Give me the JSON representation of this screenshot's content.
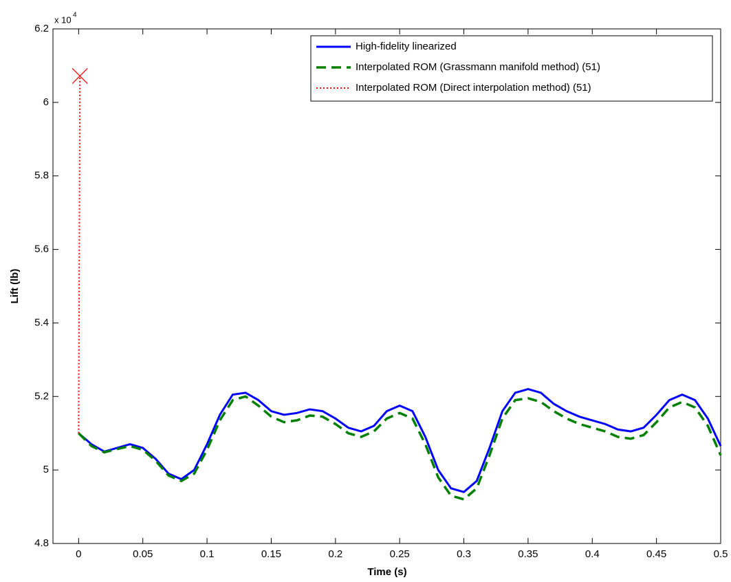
{
  "chart_data": {
    "type": "line",
    "x_label": "Time (s)",
    "y_label": "Lift (lb)",
    "y_scale": {
      "base": "x 10",
      "exponent": "4"
    },
    "xlim": [
      -0.02,
      0.5
    ],
    "ylim": [
      4.8,
      6.2
    ],
    "xticks": [
      0,
      0.05,
      0.1,
      0.15,
      0.2,
      0.25,
      0.3,
      0.35,
      0.4,
      0.45,
      0.5
    ],
    "yticks": [
      4.8,
      5,
      5.2,
      5.4,
      5.6,
      5.8,
      6,
      6.2
    ],
    "legend": "upper right",
    "grid": false,
    "x": [
      0,
      0.01,
      0.02,
      0.03,
      0.04,
      0.05,
      0.06,
      0.07,
      0.08,
      0.09,
      0.1,
      0.11,
      0.12,
      0.13,
      0.14,
      0.15,
      0.16,
      0.17,
      0.18,
      0.19,
      0.2,
      0.21,
      0.22,
      0.23,
      0.24,
      0.25,
      0.26,
      0.27,
      0.28,
      0.29,
      0.3,
      0.31,
      0.32,
      0.33,
      0.34,
      0.35,
      0.36,
      0.37,
      0.38,
      0.39,
      0.4,
      0.41,
      0.42,
      0.43,
      0.44,
      0.45,
      0.46,
      0.47,
      0.48,
      0.49,
      0.5
    ],
    "series": [
      {
        "name": "High-fidelity linearized",
        "color": "#0000ff",
        "style": "solid",
        "values": [
          5.1,
          5.07,
          5.05,
          5.06,
          5.07,
          5.06,
          5.03,
          4.99,
          4.975,
          5.0,
          5.07,
          5.15,
          5.205,
          5.21,
          5.19,
          5.16,
          5.15,
          5.155,
          5.165,
          5.16,
          5.14,
          5.115,
          5.105,
          5.12,
          5.16,
          5.175,
          5.16,
          5.09,
          5.0,
          4.95,
          4.94,
          4.97,
          5.06,
          5.16,
          5.21,
          5.22,
          5.21,
          5.18,
          5.16,
          5.145,
          5.135,
          5.125,
          5.11,
          5.105,
          5.115,
          5.15,
          5.19,
          5.205,
          5.19,
          5.14,
          5.065
        ]
      },
      {
        "name": "Interpolated ROM (Grassmann manifold method) (51)",
        "color": "#008000",
        "style": "dashed",
        "values": [
          5.1,
          5.065,
          5.048,
          5.057,
          5.065,
          5.055,
          5.025,
          4.985,
          4.97,
          4.99,
          5.055,
          5.135,
          5.19,
          5.2,
          5.175,
          5.145,
          5.13,
          5.135,
          5.148,
          5.145,
          5.125,
          5.1,
          5.09,
          5.105,
          5.14,
          5.155,
          5.14,
          5.07,
          4.98,
          4.93,
          4.92,
          4.95,
          5.04,
          5.14,
          5.19,
          5.195,
          5.185,
          5.16,
          5.14,
          5.125,
          5.115,
          5.105,
          5.09,
          5.085,
          5.095,
          5.13,
          5.17,
          5.185,
          5.17,
          5.12,
          5.04
        ]
      },
      {
        "name": "Interpolated ROM (Direct interpolation method) (51)",
        "color": "#ff0000",
        "style": "dotted",
        "marker": "x",
        "x": [
          0,
          0.001
        ],
        "values": [
          5.1,
          6.072
        ]
      }
    ]
  }
}
